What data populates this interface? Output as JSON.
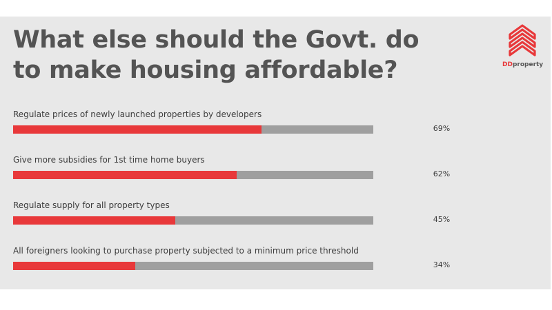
{
  "header": {
    "title": "What else should the Govt. do to make housing affordable?"
  },
  "brand": {
    "logo": "ddproperty-house-logo",
    "name_prefix": "DD",
    "name_suffix": "property",
    "color": "#e8383a"
  },
  "colors": {
    "fill": "#e8383a",
    "track": "#9f9f9f",
    "background": "#e8e8e8"
  },
  "chart_data": {
    "type": "bar",
    "orientation": "horizontal",
    "title": "What else should the Govt. do to make housing affordable?",
    "categories": [
      "Regulate prices of newly launched properties by developers",
      "Give more subsidies for 1st time home buyers",
      "Regulate supply for all property types",
      "All foreigners looking to purchase property subjected to a minimum price threshold"
    ],
    "values": [
      69,
      62,
      45,
      34
    ],
    "value_labels": [
      "69%",
      "62%",
      "45%",
      "34%"
    ],
    "xlim": [
      0,
      100
    ],
    "grid": false,
    "legend": "none"
  }
}
